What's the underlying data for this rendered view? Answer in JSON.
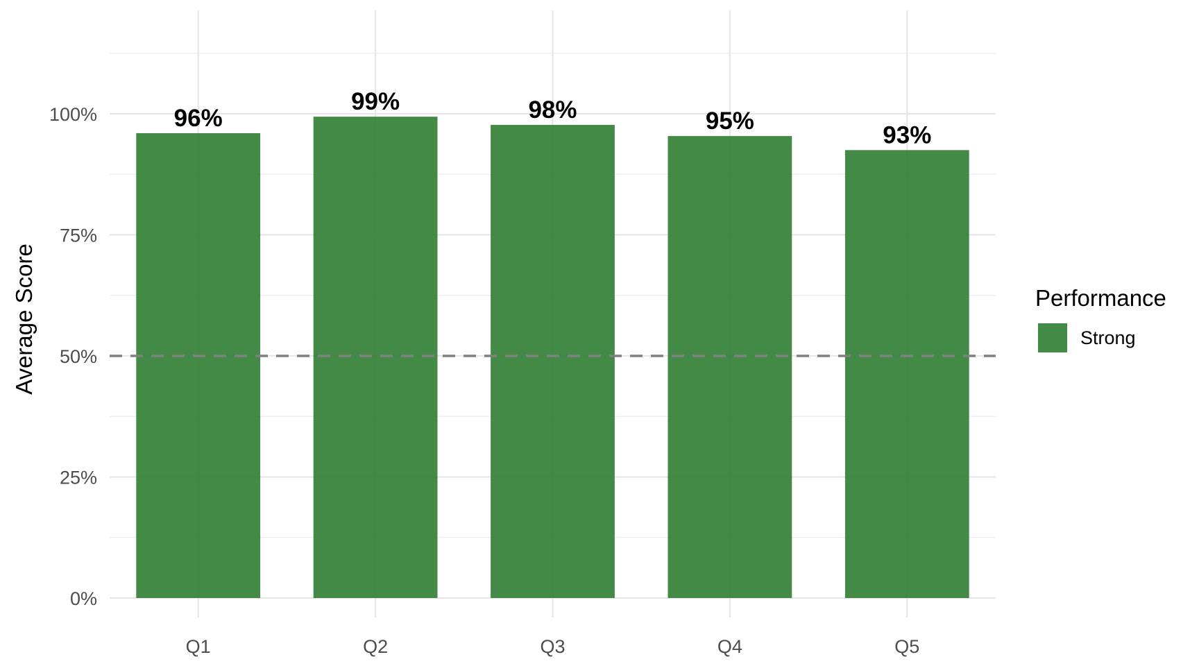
{
  "chart_data": {
    "type": "bar",
    "categories": [
      "Q1",
      "Q2",
      "Q3",
      "Q4",
      "Q5"
    ],
    "values": [
      96,
      99.4,
      97.7,
      95.4,
      92.5
    ],
    "data_labels": [
      "96%",
      "99%",
      "98%",
      "95%",
      "93%"
    ],
    "title": "",
    "xlabel": "",
    "ylabel": "Average Score",
    "ylim": [
      0,
      115
    ],
    "yticks": [
      0,
      25,
      50,
      75,
      100
    ],
    "ytick_labels": [
      "0%",
      "25%",
      "50%",
      "75%",
      "100%"
    ],
    "reference_line": {
      "value": 50,
      "style": "dashed",
      "color": "#808080"
    },
    "grid": true,
    "legend": {
      "title": "Performance",
      "placement": "right",
      "entries": [
        {
          "label": "Strong",
          "color": "#2e7d32"
        }
      ]
    },
    "bar_color": "#2e7d32"
  }
}
